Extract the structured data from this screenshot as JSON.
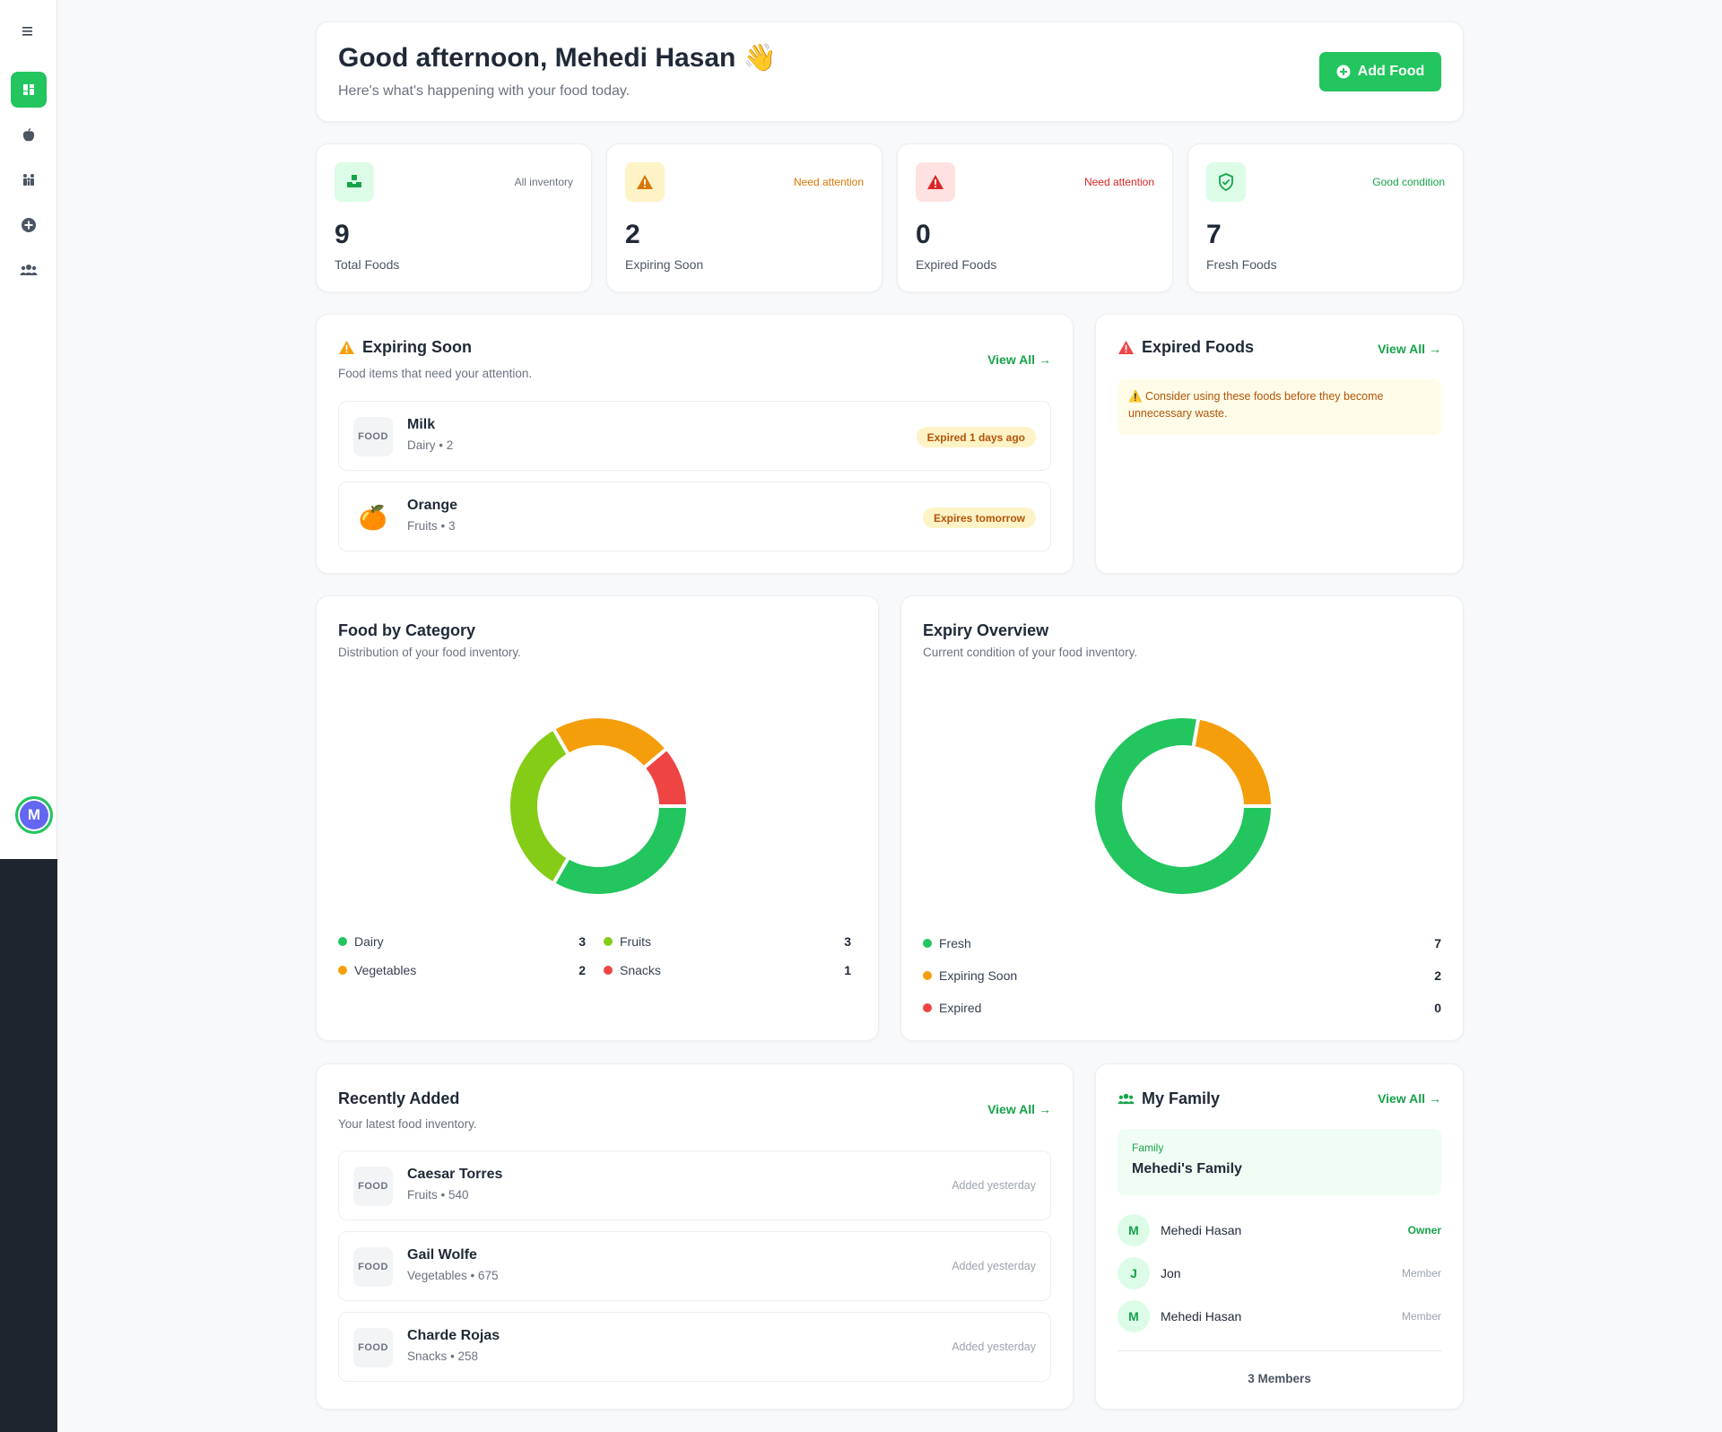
{
  "header": {
    "greeting": "Good afternoon, Mehedi Hasan 👋",
    "subtitle": "Here's what's happening with your food today.",
    "add_button": "Add Food"
  },
  "sidebar": {
    "menu_icon": "menu-icon",
    "items": [
      {
        "icon": "dashboard-icon",
        "active": true
      },
      {
        "icon": "apple-icon",
        "active": false
      },
      {
        "icon": "family-icon",
        "active": false
      },
      {
        "icon": "plus-circle-icon",
        "active": false
      },
      {
        "icon": "users-icon",
        "active": false
      }
    ],
    "avatar_initial": "M"
  },
  "stats": [
    {
      "value": "9",
      "label": "Total Foods",
      "tag": "All inventory",
      "tag_color": "#6b7280",
      "icon": "boxes-icon",
      "bg": "#dcfce7",
      "fg": "#16a34a"
    },
    {
      "value": "2",
      "label": "Expiring Soon",
      "tag": "Need attention",
      "tag_color": "#d97706",
      "icon": "warning-icon",
      "bg": "#fef3c7",
      "fg": "#d97706"
    },
    {
      "value": "0",
      "label": "Expired Foods",
      "tag": "Need attention",
      "tag_color": "#dc2626",
      "icon": "warning-icon",
      "bg": "#fee2e2",
      "fg": "#dc2626"
    },
    {
      "value": "7",
      "label": "Fresh Foods",
      "tag": "Good condition",
      "tag_color": "#16a34a",
      "icon": "shield-check-icon",
      "bg": "#dcfce7",
      "fg": "#16a34a"
    }
  ],
  "expiring": {
    "title": "Expiring Soon",
    "subtitle": "Food items that need your attention.",
    "view_all": "View All",
    "items": [
      {
        "thumb": "FOOD",
        "name": "Milk",
        "meta": "Dairy • 2",
        "badge": "Expired 1 days ago"
      },
      {
        "thumb": "🍊",
        "name": "Orange",
        "meta": "Fruits • 3",
        "badge": "Expires tomorrow"
      }
    ]
  },
  "expired": {
    "title": "Expired Foods",
    "view_all": "View All",
    "notice": "⚠️ Consider using these foods before they become unnecessary waste."
  },
  "category_chart": {
    "title": "Food by Category",
    "subtitle": "Distribution of your food inventory.",
    "legend": [
      {
        "name": "Dairy",
        "value": "3"
      },
      {
        "name": "Fruits",
        "value": "3"
      },
      {
        "name": "Vegetables",
        "value": "2"
      },
      {
        "name": "Snacks",
        "value": "1"
      }
    ]
  },
  "expiry_chart": {
    "title": "Expiry Overview",
    "subtitle": "Current condition of your food inventory.",
    "legend": [
      {
        "name": "Fresh",
        "value": "7"
      },
      {
        "name": "Expiring Soon",
        "value": "2"
      },
      {
        "name": "Expired",
        "value": "0"
      }
    ]
  },
  "chart_data": [
    {
      "type": "pie",
      "categories": [
        "Dairy",
        "Fruits",
        "Vegetables",
        "Snacks"
      ],
      "values": [
        3,
        3,
        2,
        1
      ],
      "colors": [
        "#22c55e",
        "#84cc16",
        "#f59e0b",
        "#ef4444"
      ],
      "title": "Food by Category"
    },
    {
      "type": "pie",
      "categories": [
        "Fresh",
        "Expiring Soon",
        "Expired"
      ],
      "values": [
        7,
        2,
        0
      ],
      "colors": [
        "#22c55e",
        "#f59e0b",
        "#ef4444"
      ],
      "title": "Expiry Overview"
    }
  ],
  "recent": {
    "title": "Recently Added",
    "subtitle": "Your latest food inventory.",
    "view_all": "View All",
    "items": [
      {
        "thumb": "FOOD",
        "name": "Caesar Torres",
        "meta": "Fruits • 540",
        "added": "Added yesterday"
      },
      {
        "thumb": "FOOD",
        "name": "Gail Wolfe",
        "meta": "Vegetables • 675",
        "added": "Added yesterday"
      },
      {
        "thumb": "FOOD",
        "name": "Charde Rojas",
        "meta": "Snacks • 258",
        "added": "Added yesterday"
      }
    ]
  },
  "family": {
    "title": "My Family",
    "view_all": "View All",
    "label": "Family",
    "name": "Mehedi's Family",
    "members": [
      {
        "initial": "M",
        "name": "Mehedi Hasan",
        "role": "Owner"
      },
      {
        "initial": "J",
        "name": "Jon",
        "role": "Member"
      },
      {
        "initial": "M",
        "name": "Mehedi Hasan",
        "role": "Member"
      }
    ],
    "count": "3 Members"
  },
  "colors": {
    "accent": "#22c55e",
    "warning": "#f59e0b",
    "danger": "#ef4444",
    "lime": "#84cc16"
  }
}
